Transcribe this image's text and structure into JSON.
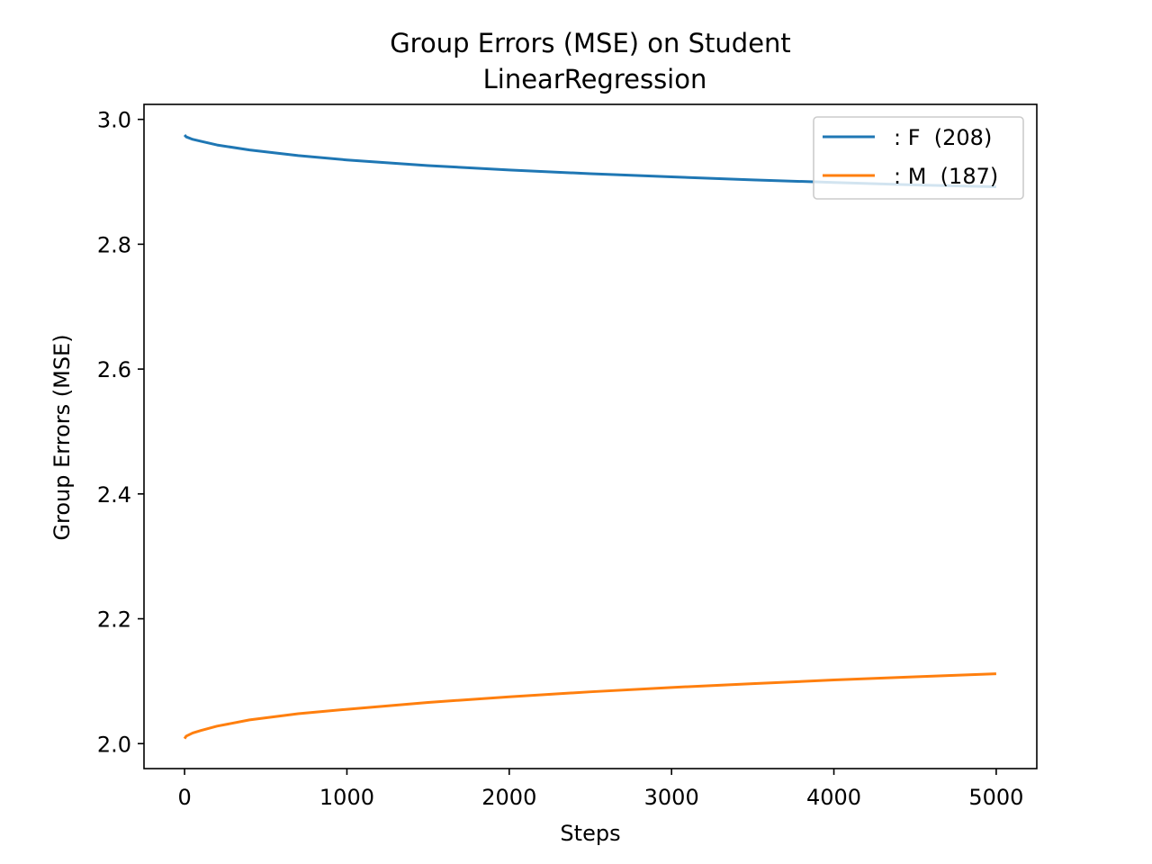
{
  "chart_data": {
    "type": "line",
    "title": "Group Errors (MSE) on Student",
    "subtitle": "LinearRegression",
    "xlabel": "Steps",
    "ylabel": "Group Errors (MSE)",
    "xlim": [
      -250,
      5250
    ],
    "ylim": [
      1.96,
      3.024
    ],
    "x_ticks": [
      0,
      1000,
      2000,
      3000,
      4000,
      5000
    ],
    "x_tick_labels": [
      "0",
      "1000",
      "2000",
      "3000",
      "4000",
      "5000"
    ],
    "y_ticks": [
      2.0,
      2.2,
      2.4,
      2.6,
      2.8,
      3.0
    ],
    "y_tick_labels": [
      "2.0",
      "2.2",
      "2.4",
      "2.6",
      "2.8",
      "3.0"
    ],
    "grid": false,
    "legend_position": "upper right",
    "series": [
      {
        "name": ": F  (208)",
        "color": "#1f77b4",
        "x": [
          0,
          10,
          50,
          100,
          200,
          400,
          700,
          1000,
          1500,
          2000,
          2500,
          3000,
          3500,
          4000,
          4500,
          5000
        ],
        "y": [
          2.975,
          2.972,
          2.968,
          2.965,
          2.959,
          2.951,
          2.942,
          2.935,
          2.926,
          2.919,
          2.913,
          2.908,
          2.903,
          2.899,
          2.895,
          2.892
        ]
      },
      {
        "name": ": M  (187)",
        "color": "#ff7f0e",
        "x": [
          0,
          10,
          50,
          100,
          200,
          400,
          700,
          1000,
          1500,
          2000,
          2500,
          3000,
          3500,
          4000,
          4500,
          5000
        ],
        "y": [
          2.008,
          2.012,
          2.017,
          2.021,
          2.028,
          2.038,
          2.048,
          2.055,
          2.066,
          2.075,
          2.083,
          2.09,
          2.096,
          2.102,
          2.107,
          2.112
        ]
      }
    ]
  }
}
